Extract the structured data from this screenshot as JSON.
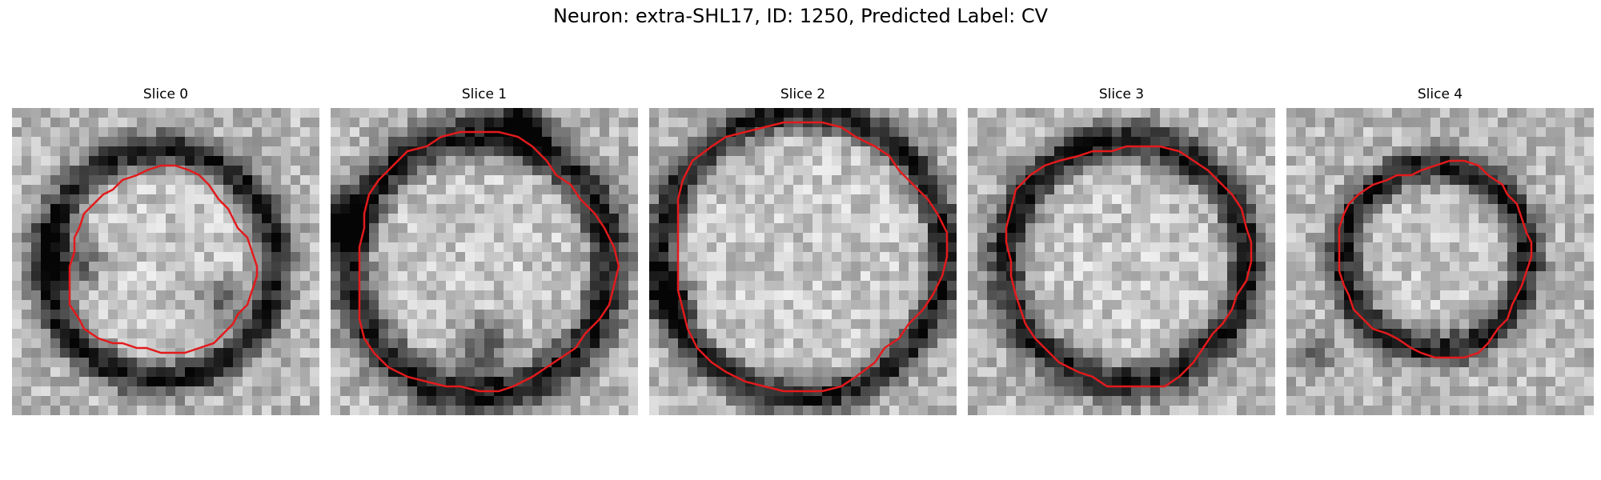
{
  "figure": {
    "title": "Neuron: extra-SHL17, ID: 1250, Predicted Label: CV",
    "contour_color": "#e31a1c",
    "colormap": "grayscale"
  },
  "slices": [
    {
      "title": "Slice 0",
      "image_description": "grayscale"
    },
    {
      "title": "Slice 1",
      "image_description": "grayscale"
    },
    {
      "title": "Slice 2",
      "image_description": "grayscale"
    },
    {
      "title": "Slice 3",
      "image_description": "grayscale"
    },
    {
      "title": "Slice 4",
      "image_description": "grayscale"
    }
  ]
}
